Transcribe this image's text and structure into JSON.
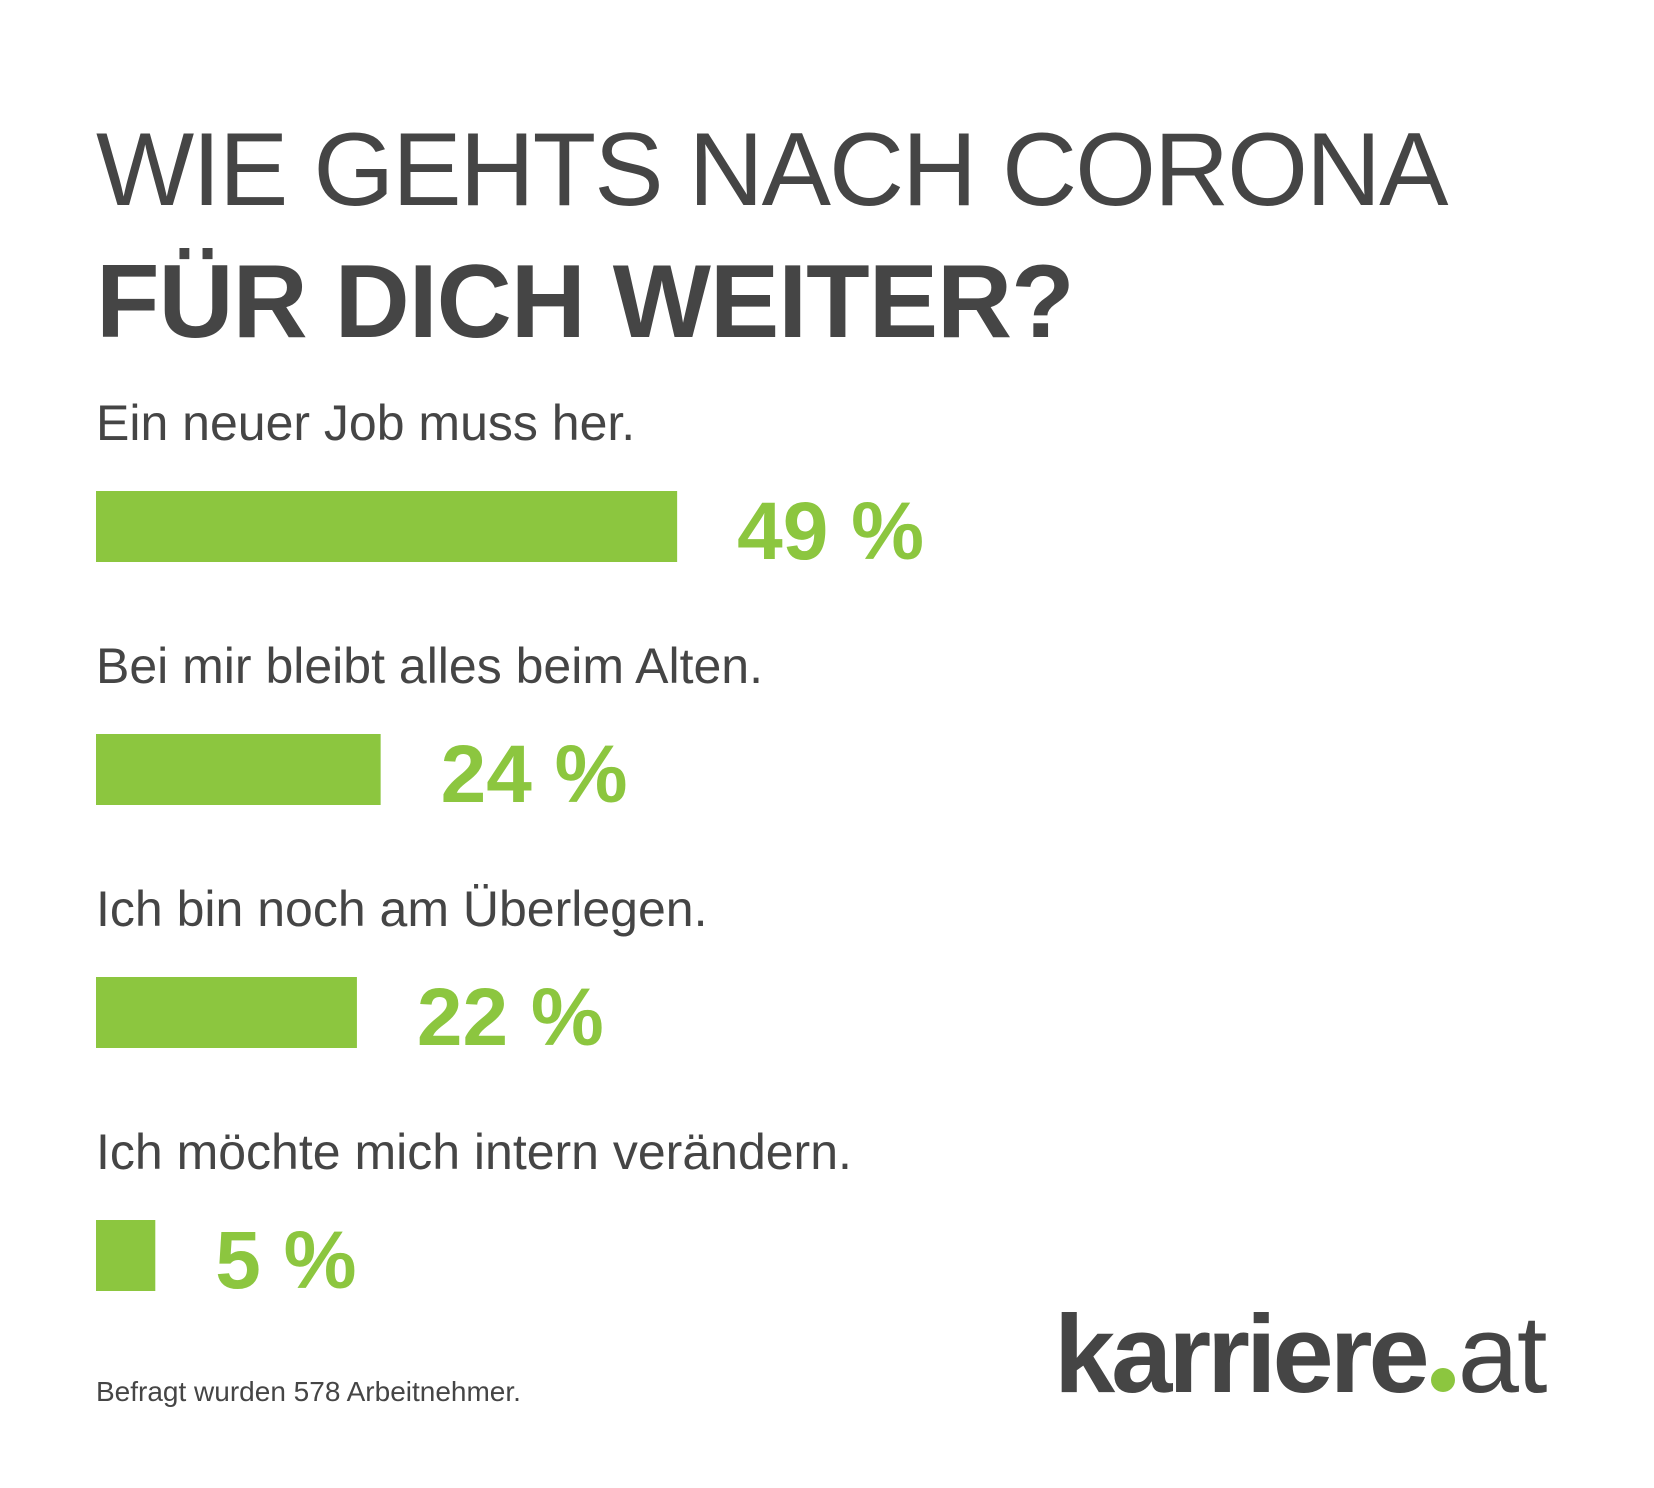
{
  "header": {
    "title_line1": "WIE GEHTS NACH CORONA",
    "title_line2": "FÜR DICH WEITER?"
  },
  "chart_data": {
    "type": "bar",
    "orientation": "horizontal",
    "categories": [
      "Ein neuer Job muss her.",
      "Bei mir bleibt alles beim Alten.",
      "Ich bin noch am Überlegen.",
      "Ich möchte mich intern verändern."
    ],
    "values": [
      49,
      24,
      22,
      5
    ],
    "value_labels": [
      "49 %",
      "24 %",
      "22 %",
      "5 %"
    ],
    "unit": "%",
    "xlim": [
      0,
      100
    ],
    "grid": false,
    "bar_color": "#8cc63f",
    "label_color": "#8cc63f"
  },
  "footer": {
    "note": "Befragt wurden 578 Arbeitnehmer.",
    "logo_brand": "karriere",
    "logo_suffix": "at"
  },
  "colors": {
    "text": "#454545",
    "accent": "#8cc63f",
    "background": "#ffffff"
  }
}
